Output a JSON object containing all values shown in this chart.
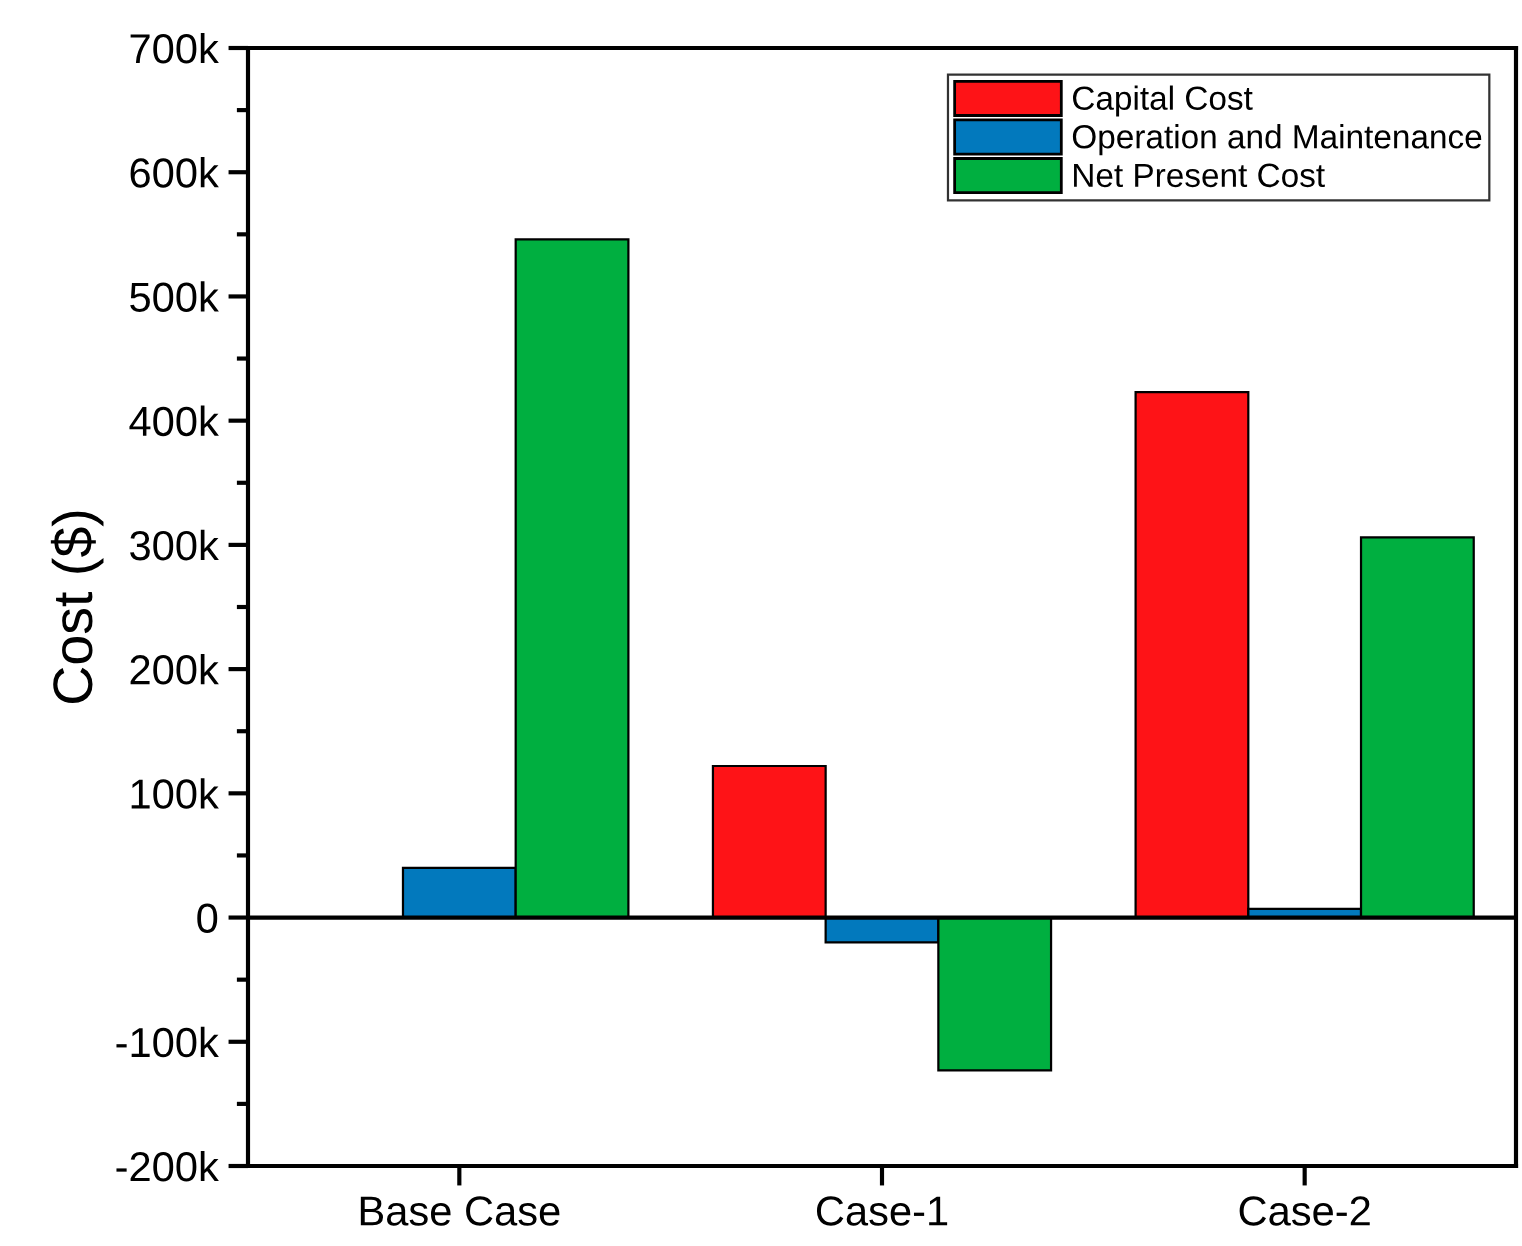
{
  "chart_data": {
    "type": "bar",
    "ylabel": "Cost ($)",
    "categories": [
      "Base Case",
      "Case-1",
      "Case-2"
    ],
    "series": [
      {
        "name": "Capital Cost",
        "color": "#fe1317",
        "values": [
          null,
          122000,
          423000
        ]
      },
      {
        "name": "Operation and Maintenance",
        "color": "#0279bd",
        "values": [
          40000,
          -20000,
          7000
        ]
      },
      {
        "name": "Net Present Cost",
        "color": "#00af40",
        "values": [
          546000,
          -123000,
          306000
        ]
      }
    ],
    "ylim": [
      -200000,
      700000
    ],
    "yticks": [
      {
        "value": -200000,
        "label": "-200k"
      },
      {
        "value": -100000,
        "label": "-100k"
      },
      {
        "value": 0,
        "label": "0"
      },
      {
        "value": 100000,
        "label": "100k"
      },
      {
        "value": 200000,
        "label": "200k"
      },
      {
        "value": 300000,
        "label": "300k"
      },
      {
        "value": 400000,
        "label": "400k"
      },
      {
        "value": 500000,
        "label": "500k"
      },
      {
        "value": 600000,
        "label": "600k"
      },
      {
        "value": 700000,
        "label": "700k"
      }
    ],
    "ref_lines": [
      {
        "axis": "y",
        "value": 0,
        "label": null,
        "color": "#000000"
      }
    ],
    "grid": false,
    "legend": "top right"
  }
}
